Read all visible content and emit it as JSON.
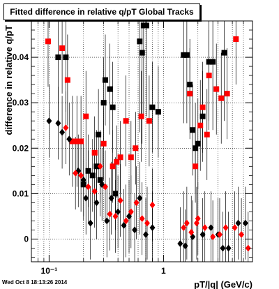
{
  "title": "Fitted difference in relative q/pT  Global Tracks",
  "footer_timestamp": "Wed Oct  8 18:13:26 2014",
  "chart_data": {
    "type": "scatter",
    "title": "Fitted difference in relative q/pT  Global Tracks",
    "xlabel": "pT/|q| (GeV/c)",
    "ylabel": "difference in relative q/pT",
    "x_scale": "log",
    "xlim": [
      0.07,
      6.0
    ],
    "ylim": [
      -0.005,
      0.048
    ],
    "grid": true,
    "x_ticks": [
      {
        "value": 0.1,
        "label": "10⁻¹"
      },
      {
        "value": 1,
        "label": "1"
      }
    ],
    "y_ticks": [
      {
        "value": 0,
        "label": "0"
      },
      {
        "value": 0.01,
        "label": "0.01"
      },
      {
        "value": 0.02,
        "label": "0.02"
      },
      {
        "value": 0.03,
        "label": "0.03"
      },
      {
        "value": 0.04,
        "label": "0.04"
      }
    ],
    "colors": {
      "black_series": "#000000",
      "red_series": "#ff0000"
    },
    "series": [
      {
        "marker": "square",
        "color": "#000000",
        "points": [
          [
            0.12,
            0.04,
            0.015
          ],
          [
            0.14,
            0.04,
            0.012
          ],
          [
            0.62,
            0.0435,
            0.02
          ],
          [
            0.67,
            0.047,
            0.02
          ],
          [
            0.71,
            0.047,
            0.02
          ],
          [
            0.65,
            0.041,
            0.02
          ],
          [
            0.31,
            0.035,
            0.01
          ],
          [
            0.34,
            0.033,
            0.01
          ],
          [
            0.36,
            0.029,
            0.01
          ],
          [
            0.3,
            0.03,
            0.01
          ],
          [
            0.27,
            0.023,
            0.01
          ],
          [
            0.26,
            0.016,
            0.008
          ],
          [
            0.24,
            0.014,
            0.008
          ],
          [
            0.22,
            0.015,
            0.008
          ],
          [
            0.2,
            0.012,
            0.008
          ],
          [
            0.28,
            0.013,
            0.008
          ],
          [
            0.38,
            0.01,
            0.008
          ],
          [
            1.5,
            0.0405,
            0.015
          ],
          [
            1.6,
            0.0405,
            0.015
          ],
          [
            1.7,
            0.034,
            0.01
          ],
          [
            1.8,
            0.024,
            0.01
          ],
          [
            2.5,
            0.039,
            0.015
          ],
          [
            2.7,
            0.039,
            0.015
          ],
          [
            3.4,
            0.041,
            0.015
          ],
          [
            2.2,
            0.027,
            0.01
          ],
          [
            1.9,
            0.02,
            0.01
          ],
          [
            2.0,
            0.021,
            0.01
          ],
          [
            0.8,
            0.029,
            0.01
          ],
          [
            0.9,
            0.028,
            0.01
          ]
        ]
      },
      {
        "marker": "square",
        "color": "#ff0000",
        "points": [
          [
            0.098,
            0.0435,
            0.01
          ],
          [
            0.13,
            0.042,
            0.01
          ],
          [
            0.145,
            0.035,
            0.01
          ],
          [
            0.16,
            0.0215,
            0.01
          ],
          [
            0.175,
            0.0215,
            0.01
          ],
          [
            0.19,
            0.0215,
            0.01
          ],
          [
            0.21,
            0.027,
            0.01
          ],
          [
            0.25,
            0.019,
            0.008
          ],
          [
            0.3,
            0.021,
            0.008
          ],
          [
            0.36,
            0.016,
            0.008
          ],
          [
            0.39,
            0.017,
            0.008
          ],
          [
            0.42,
            0.018,
            0.008
          ],
          [
            0.47,
            0.026,
            0.01
          ],
          [
            0.52,
            0.018,
            0.008
          ],
          [
            0.57,
            0.02,
            0.008
          ],
          [
            0.64,
            0.027,
            0.01
          ],
          [
            0.75,
            0.026,
            0.01
          ],
          [
            1.7,
            0.032,
            0.01
          ],
          [
            2.2,
            0.029,
            0.01
          ],
          [
            2.5,
            0.036,
            0.01
          ],
          [
            2.9,
            0.033,
            0.01
          ],
          [
            3.2,
            0.031,
            0.01
          ],
          [
            3.6,
            0.032,
            0.01
          ],
          [
            4.3,
            0.044,
            0.01
          ],
          [
            2.1,
            0.025,
            0.01
          ],
          [
            2.4,
            0.023,
            0.01
          ],
          [
            1.9,
            0.016,
            0.008
          ]
        ]
      },
      {
        "marker": "diamond",
        "color": "#000000",
        "points": [
          [
            0.1,
            0.026,
            0.008
          ],
          [
            0.12,
            0.0255,
            0.008
          ],
          [
            0.13,
            0.0235,
            0.008
          ],
          [
            0.15,
            0.022,
            0.008
          ],
          [
            0.18,
            0.015,
            0.008
          ],
          [
            0.2,
            0.013,
            0.008
          ],
          [
            0.21,
            0.009,
            0.008
          ],
          [
            0.23,
            0.0035,
            0.008
          ],
          [
            0.26,
            0.008,
            0.008
          ],
          [
            0.29,
            0.012,
            0.008
          ],
          [
            0.32,
            0.004,
            0.008
          ],
          [
            0.35,
            0.009,
            0.008
          ],
          [
            0.4,
            0.006,
            0.008
          ],
          [
            0.45,
            0.003,
            0.008
          ],
          [
            0.5,
            0.005,
            0.008
          ],
          [
            0.56,
            0.002,
            0.008
          ],
          [
            0.62,
            0.009,
            0.008
          ],
          [
            0.7,
            0.001,
            0.008
          ],
          [
            0.8,
            0.0025,
            0.008
          ],
          [
            1.4,
            -0.001,
            0.008
          ],
          [
            1.55,
            -0.0015,
            0.008
          ],
          [
            1.8,
            0.0005,
            0.008
          ],
          [
            2.2,
            0.001,
            0.008
          ],
          [
            2.6,
            0.0025,
            0.008
          ],
          [
            3.0,
            0.001,
            0.008
          ],
          [
            3.3,
            -0.002,
            0.008
          ],
          [
            3.7,
            -0.002,
            0.008
          ],
          [
            4.5,
            0.0035,
            0.008
          ],
          [
            5.2,
            0.0035,
            0.008
          ]
        ]
      },
      {
        "marker": "diamond",
        "color": "#ff0000",
        "points": [
          [
            0.14,
            0.0245,
            0.008
          ],
          [
            0.17,
            0.0145,
            0.008
          ],
          [
            0.19,
            0.014,
            0.008
          ],
          [
            0.22,
            0.0115,
            0.008
          ],
          [
            0.25,
            0.0105,
            0.008
          ],
          [
            0.28,
            0.016,
            0.008
          ],
          [
            0.31,
            0.0115,
            0.008
          ],
          [
            0.34,
            0.0055,
            0.008
          ],
          [
            0.38,
            0.005,
            0.008
          ],
          [
            0.42,
            0.0085,
            0.008
          ],
          [
            0.47,
            0.004,
            0.008
          ],
          [
            0.52,
            0.006,
            0.008
          ],
          [
            0.58,
            0.008,
            0.008
          ],
          [
            0.65,
            0.0045,
            0.008
          ],
          [
            0.72,
            0.0035,
            0.008
          ],
          [
            0.8,
            0.0075,
            0.008
          ],
          [
            1.6,
            0.0035,
            0.008
          ],
          [
            1.75,
            0.0015,
            0.008
          ],
          [
            1.95,
            0.0035,
            0.008
          ],
          [
            2.3,
            0.0025,
            0.008
          ],
          [
            2.7,
            0.0005,
            0.008
          ],
          [
            3.1,
            0.001,
            0.008
          ],
          [
            3.5,
            0.0025,
            0.008
          ],
          [
            4.2,
            0.0025,
            0.008
          ],
          [
            4.8,
            0.001,
            0.008
          ],
          [
            5.5,
            -0.002,
            0.008
          ],
          [
            2.0,
            0.0045,
            0.008
          ],
          [
            1.5,
            0.0025,
            0.008
          ]
        ]
      }
    ]
  }
}
